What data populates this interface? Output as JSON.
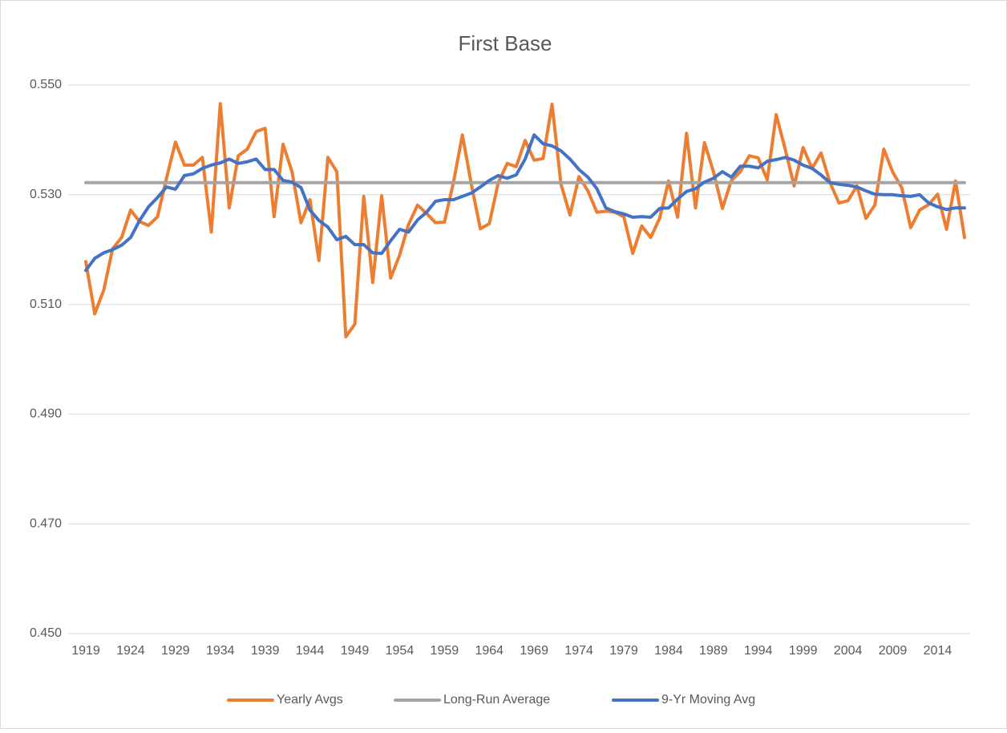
{
  "chart_data": {
    "type": "line",
    "title": "First Base",
    "categories": [
      "1919",
      null,
      null,
      null,
      null,
      "1924",
      null,
      null,
      null,
      null,
      "1929",
      null,
      null,
      null,
      null,
      "1934",
      null,
      null,
      null,
      null,
      "1939",
      null,
      null,
      null,
      null,
      "1944",
      null,
      null,
      null,
      null,
      "1949",
      null,
      null,
      null,
      null,
      "1954",
      null,
      null,
      null,
      null,
      "1959",
      null,
      null,
      null,
      null,
      "1964",
      null,
      null,
      null,
      null,
      "1969",
      null,
      null,
      null,
      null,
      "1974",
      null,
      null,
      null,
      null,
      "1979",
      null,
      null,
      null,
      null,
      "1984",
      null,
      null,
      null,
      null,
      "1989",
      null,
      null,
      null,
      null,
      "1994",
      null,
      null,
      null,
      null,
      "1999",
      null,
      null,
      null,
      null,
      "2004",
      null,
      null,
      null,
      null,
      "2009",
      null,
      null,
      null,
      null,
      "2014",
      null,
      null,
      null
    ],
    "series": [
      {
        "name": "Yearly Avgs",
        "color": "#ed7d31",
        "values": [
          0.5178,
          0.5083,
          0.5126,
          0.5202,
          0.5222,
          0.5272,
          0.5251,
          0.5244,
          0.526,
          0.533,
          0.5396,
          0.5354,
          0.5354,
          0.5368,
          0.5232,
          0.5466,
          0.5276,
          0.5371,
          0.5383,
          0.5415,
          0.5421,
          0.526,
          0.5392,
          0.5342,
          0.5249,
          0.5291,
          0.518,
          0.5368,
          0.5342,
          0.5041,
          0.5064,
          0.5297,
          0.514,
          0.5298,
          0.5148,
          0.519,
          0.5246,
          0.5281,
          0.5266,
          0.5249,
          0.525,
          0.5322,
          0.5409,
          0.5319,
          0.5238,
          0.5247,
          0.5322,
          0.5357,
          0.5351,
          0.5399,
          0.5363,
          0.5366,
          0.5465,
          0.5319,
          0.5263,
          0.5333,
          0.5307,
          0.5268,
          0.527,
          0.5268,
          0.526,
          0.5193,
          0.5243,
          0.5222,
          0.5257,
          0.5325,
          0.5259,
          0.5412,
          0.5276,
          0.5395,
          0.5342,
          0.5275,
          0.5326,
          0.5342,
          0.5371,
          0.5367,
          0.5327,
          0.5446,
          0.5383,
          0.5316,
          0.5386,
          0.5348,
          0.5376,
          0.5322,
          0.5285,
          0.5289,
          0.5316,
          0.5257,
          0.5281,
          0.5383,
          0.5341,
          0.5313,
          0.524,
          0.5272,
          0.5282,
          0.5301,
          0.5237,
          0.5325,
          0.5222
        ]
      },
      {
        "name": "Long-Run Average",
        "color": "#a5a5a5",
        "values": [
          0.5322,
          0.5322,
          0.5322,
          0.5322,
          0.5322,
          0.5322,
          0.5322,
          0.5322,
          0.5322,
          0.5322,
          0.5322,
          0.5322,
          0.5322,
          0.5322,
          0.5322,
          0.5322,
          0.5322,
          0.5322,
          0.5322,
          0.5322,
          0.5322,
          0.5322,
          0.5322,
          0.5322,
          0.5322,
          0.5322,
          0.5322,
          0.5322,
          0.5322,
          0.5322,
          0.5322,
          0.5322,
          0.5322,
          0.5322,
          0.5322,
          0.5322,
          0.5322,
          0.5322,
          0.5322,
          0.5322,
          0.5322,
          0.5322,
          0.5322,
          0.5322,
          0.5322,
          0.5322,
          0.5322,
          0.5322,
          0.5322,
          0.5322,
          0.5322,
          0.5322,
          0.5322,
          0.5322,
          0.5322,
          0.5322,
          0.5322,
          0.5322,
          0.5322,
          0.5322,
          0.5322,
          0.5322,
          0.5322,
          0.5322,
          0.5322,
          0.5322,
          0.5322,
          0.5322,
          0.5322,
          0.5322,
          0.5322,
          0.5322,
          0.5322,
          0.5322,
          0.5322,
          0.5322,
          0.5322,
          0.5322,
          0.5322,
          0.5322,
          0.5322,
          0.5322,
          0.5322,
          0.5322,
          0.5322,
          0.5322,
          0.5322,
          0.5322,
          0.5322,
          0.5322,
          0.5322,
          0.5322,
          0.5322,
          0.5322,
          0.5322,
          0.5322,
          0.5322,
          0.5322,
          0.5322
        ]
      },
      {
        "name": "9-Yr Moving Avg",
        "color": "#4472c4",
        "values": [
          0.5162,
          0.5184,
          0.5194,
          0.52,
          0.5208,
          0.5222,
          0.5253,
          0.5278,
          0.5295,
          0.5314,
          0.531,
          0.5335,
          0.5338,
          0.5348,
          0.5354,
          0.5358,
          0.5365,
          0.5357,
          0.536,
          0.5365,
          0.5346,
          0.5346,
          0.5326,
          0.5323,
          0.5313,
          0.5272,
          0.5253,
          0.5241,
          0.5218,
          0.5224,
          0.5209,
          0.5209,
          0.5194,
          0.5193,
          0.5216,
          0.5237,
          0.5232,
          0.5254,
          0.5268,
          0.5288,
          0.5291,
          0.5291,
          0.5297,
          0.5303,
          0.5314,
          0.5326,
          0.5335,
          0.533,
          0.5336,
          0.5365,
          0.5409,
          0.5393,
          0.5389,
          0.538,
          0.5365,
          0.5346,
          0.5332,
          0.5311,
          0.5276,
          0.5269,
          0.5265,
          0.5259,
          0.526,
          0.5259,
          0.5275,
          0.5276,
          0.5292,
          0.5306,
          0.5311,
          0.5323,
          0.533,
          0.5342,
          0.5332,
          0.5352,
          0.5352,
          0.5349,
          0.5361,
          0.5364,
          0.5368,
          0.5363,
          0.5354,
          0.5348,
          0.5336,
          0.5322,
          0.5319,
          0.5317,
          0.5314,
          0.5307,
          0.5301,
          0.53,
          0.53,
          0.5298,
          0.5297,
          0.53,
          0.5285,
          0.5278,
          0.5273,
          0.5276,
          0.5276
        ]
      }
    ],
    "ylim": [
      0.45,
      0.55
    ],
    "yticks": [
      {
        "value": 0.45,
        "label": "0.450"
      },
      {
        "value": 0.47,
        "label": "0.470"
      },
      {
        "value": 0.49,
        "label": "0.490"
      },
      {
        "value": 0.51,
        "label": "0.510"
      },
      {
        "value": 0.53,
        "label": "0.530"
      },
      {
        "value": 0.55,
        "label": "0.550"
      }
    ],
    "grid": true,
    "legend": "bottom"
  }
}
